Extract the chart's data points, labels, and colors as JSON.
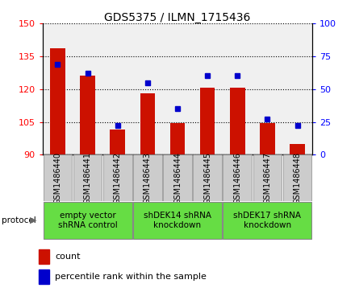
{
  "title": "GDS5375 / ILMN_1715436",
  "samples": [
    "GSM1486440",
    "GSM1486441",
    "GSM1486442",
    "GSM1486443",
    "GSM1486444",
    "GSM1486445",
    "GSM1486446",
    "GSM1486447",
    "GSM1486448"
  ],
  "count_values": [
    138.5,
    126.0,
    101.5,
    118.0,
    104.5,
    120.5,
    120.5,
    104.5,
    95.0
  ],
  "percentile_values": [
    69,
    62,
    22,
    55,
    35,
    60,
    60,
    27,
    22
  ],
  "ylim_left": [
    90,
    150
  ],
  "ylim_right": [
    0,
    100
  ],
  "yticks_left": [
    90,
    105,
    120,
    135,
    150
  ],
  "yticks_right": [
    0,
    25,
    50,
    75,
    100
  ],
  "groups": [
    {
      "label": "empty vector\nshRNA control",
      "start": 0,
      "end": 3
    },
    {
      "label": "shDEK14 shRNA\nknockdown",
      "start": 3,
      "end": 6
    },
    {
      "label": "shDEK17 shRNA\nknockdown",
      "start": 6,
      "end": 9
    }
  ],
  "group_color": "#66dd44",
  "bar_color": "#cc1100",
  "dot_color": "#0000cc",
  "bar_width": 0.5,
  "plot_bg_color": "#f0f0f0",
  "sample_box_color": "#cccccc",
  "legend_count_label": "count",
  "legend_percentile_label": "percentile rank within the sample",
  "protocol_label": "protocol",
  "title_fontsize": 10,
  "tick_fontsize": 8,
  "sample_fontsize": 7,
  "group_fontsize": 7.5
}
